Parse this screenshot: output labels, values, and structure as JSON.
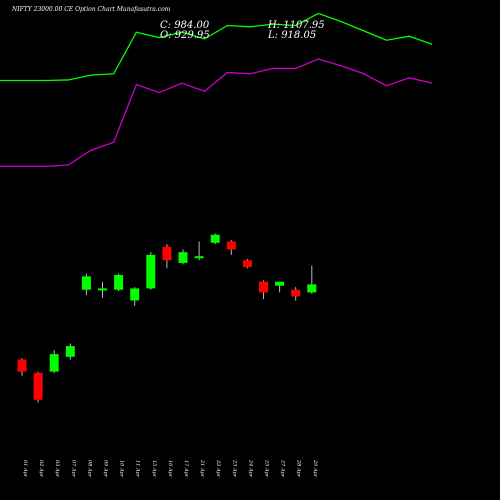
{
  "header": {
    "title": "NIFTY 23000.00 CE Option Chart Munafasutra.com",
    "close_text": "C: 984.00",
    "open_text": "O: 929.95",
    "high_text": "H: 1107.95",
    "low_text": "L: 918.05"
  },
  "colors": {
    "background": "#000000",
    "up": "#00ff00",
    "down": "#ff0000",
    "upper_band": "#00ff00",
    "lower_band": "#cc00cc",
    "text": "#ffffff"
  },
  "chart_data": {
    "type": "candlestick",
    "categories": [
      "01 Apr",
      "02 Apr",
      "03 Apr",
      "07 Apr",
      "08 Apr",
      "09 Apr",
      "10 Apr",
      "11 Apr",
      "15 Apr",
      "16 Apr",
      "17 Apr",
      "21 Apr",
      "22 Apr",
      "23 Apr",
      "24 Apr",
      "25 Apr",
      "27 Apr",
      "28 Apr",
      "29 Apr"
    ],
    "candles": [
      {
        "open": 300,
        "high": 305,
        "low": 240,
        "close": 255
      },
      {
        "open": 250,
        "high": 255,
        "low": 140,
        "close": 150
      },
      {
        "open": 255,
        "high": 335,
        "low": 250,
        "close": 320
      },
      {
        "open": 310,
        "high": 360,
        "low": 300,
        "close": 350
      },
      {
        "open": 560,
        "high": 620,
        "low": 540,
        "close": 610
      },
      {
        "open": 560,
        "high": 590,
        "low": 530,
        "close": 565
      },
      {
        "open": 560,
        "high": 620,
        "low": 555,
        "close": 615
      },
      {
        "open": 520,
        "high": 570,
        "low": 500,
        "close": 565
      },
      {
        "open": 565,
        "high": 700,
        "low": 560,
        "close": 690
      },
      {
        "open": 720,
        "high": 730,
        "low": 640,
        "close": 670
      },
      {
        "open": 660,
        "high": 710,
        "low": 655,
        "close": 700
      },
      {
        "open": 680,
        "high": 740,
        "low": 670,
        "close": 685
      },
      {
        "open": 735,
        "high": 770,
        "low": 730,
        "close": 765
      },
      {
        "open": 740,
        "high": 745,
        "low": 690,
        "close": 710
      },
      {
        "open": 670,
        "high": 675,
        "low": 640,
        "close": 645
      },
      {
        "open": 590,
        "high": 595,
        "low": 525,
        "close": 550
      },
      {
        "open": 575,
        "high": 585,
        "low": 550,
        "close": 590
      },
      {
        "open": 560,
        "high": 570,
        "low": 520,
        "close": 535
      },
      {
        "open": 550,
        "high": 650,
        "low": 545,
        "close": 580
      }
    ],
    "upper_band": [
      1340,
      1340,
      1342,
      1360,
      1365,
      1520,
      1500,
      1520,
      1495,
      1545,
      1540,
      1550,
      1545,
      1590,
      1560,
      1525,
      1490,
      1505,
      1475
    ],
    "lower_band": [
      1020,
      1020,
      1025,
      1080,
      1110,
      1325,
      1295,
      1330,
      1300,
      1370,
      1365,
      1385,
      1385,
      1420,
      1395,
      1365,
      1320,
      1350,
      1330
    ],
    "ylim": [
      0,
      1640
    ],
    "grid": false,
    "legend": "none"
  }
}
